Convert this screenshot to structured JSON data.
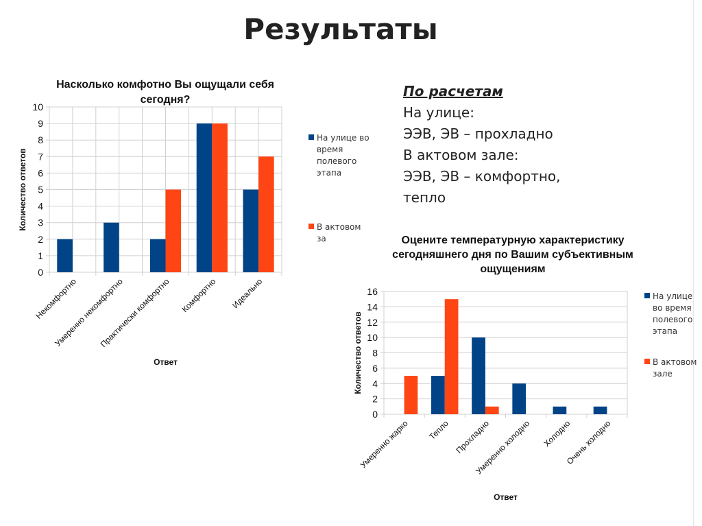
{
  "slide_title": "Результаты",
  "calc": {
    "heading": "По расчетам",
    "lines": [
      "На улице:",
      "ЭЭВ, ЭВ – прохладно",
      "В актовом зале:",
      "ЭЭВ, ЭВ – комфортно,",
      "тепло"
    ]
  },
  "colors": {
    "series1": "#004386",
    "series2": "#ff4514",
    "grid": "#d0d0d0"
  },
  "chart_data": [
    {
      "type": "bar",
      "title": "Насколько комфотно Вы ощущали себя сегодня?",
      "title_lines": [
        "Насколько комфотно Вы ощущали себя",
        "сегодня?"
      ],
      "xlabel": "Ответ",
      "ylabel": "Количество ответов",
      "ylim": [
        0,
        10
      ],
      "yticks": [
        "0",
        "1",
        "2",
        "3",
        "4",
        "5",
        "6",
        "7",
        "8",
        "9",
        "10"
      ],
      "grid": true,
      "legend": "right",
      "categories": [
        "Некомфортно",
        "Умеренно некомфортно",
        "Практически комфортно",
        "Комфортно",
        "Идеально"
      ],
      "series": [
        {
          "name": "На улице во время полевого этапа",
          "legend_lines": [
            "На улице во",
            "время",
            "полевого",
            "этапа"
          ],
          "values": [
            2,
            3,
            2,
            9,
            5
          ]
        },
        {
          "name": "В актовом за",
          "legend_lines": [
            "В актовом",
            "за"
          ],
          "values": [
            0,
            0,
            5,
            9,
            7
          ]
        }
      ]
    },
    {
      "type": "bar",
      "title": "Оцените температурную характеристику сегодняшнего дня по Вашим субъективным ощущениям",
      "title_lines": [
        "Оцените  температурную характеристику",
        "сегодняшнего дня по Вашим субъективным",
        "ощущениям"
      ],
      "xlabel": "Ответ",
      "ylabel": "Количество ответов",
      "ylim": [
        0,
        16
      ],
      "yticks": [
        "0",
        "2",
        "4",
        "6",
        "8",
        "10",
        "12",
        "14",
        "16"
      ],
      "grid": true,
      "legend": "right",
      "categories": [
        "Умеренно жарко",
        "Тепло",
        "Прохладно",
        "Умеренно холодно",
        "Холодно",
        "Очень холодно"
      ],
      "series": [
        {
          "name": "На улице во время полевого этапа",
          "legend_lines": [
            "На улице",
            "во время",
            "полевого",
            "этапа"
          ],
          "values": [
            0,
            5,
            10,
            4,
            1,
            1
          ]
        },
        {
          "name": "В актовом зале",
          "legend_lines": [
            "В актовом",
            "зале"
          ],
          "values": [
            5,
            15,
            1,
            0,
            0,
            0
          ]
        }
      ]
    }
  ]
}
